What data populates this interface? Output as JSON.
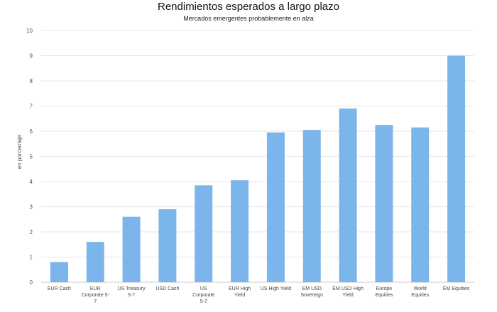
{
  "chart_data": {
    "type": "bar",
    "title": "Rendimientos esperados a largo plazo",
    "subtitle": "Mercados emergentes probablemente en alza",
    "ylabel": "en porcentaje",
    "xlabel": "",
    "ylim": [
      0,
      10
    ],
    "yticks": [
      "0",
      "1",
      "2",
      "3",
      "4",
      "5",
      "6",
      "7",
      "8",
      "9",
      "10"
    ],
    "categories": [
      [
        "EUR Cash"
      ],
      [
        "EUR",
        "Corporate 5-",
        "7"
      ],
      [
        "US Treasury",
        "5-7"
      ],
      [
        "USD Cash"
      ],
      [
        "US",
        "Corporate",
        "5-7"
      ],
      [
        "EUR High",
        "Yield"
      ],
      [
        "US High Yield"
      ],
      [
        "EM USD",
        "Sovereign"
      ],
      [
        "EM USD High",
        "Yield"
      ],
      [
        "Europe",
        "Equities"
      ],
      [
        "World",
        "Equities"
      ],
      [
        "EM Equities"
      ]
    ],
    "values": [
      0.8,
      1.6,
      2.6,
      2.9,
      3.85,
      4.05,
      5.95,
      6.05,
      6.9,
      6.25,
      6.15,
      9.0
    ],
    "grid": true,
    "legend": "none",
    "bar_color": "#7cb5ec",
    "grid_color": "#e6e6e6"
  }
}
